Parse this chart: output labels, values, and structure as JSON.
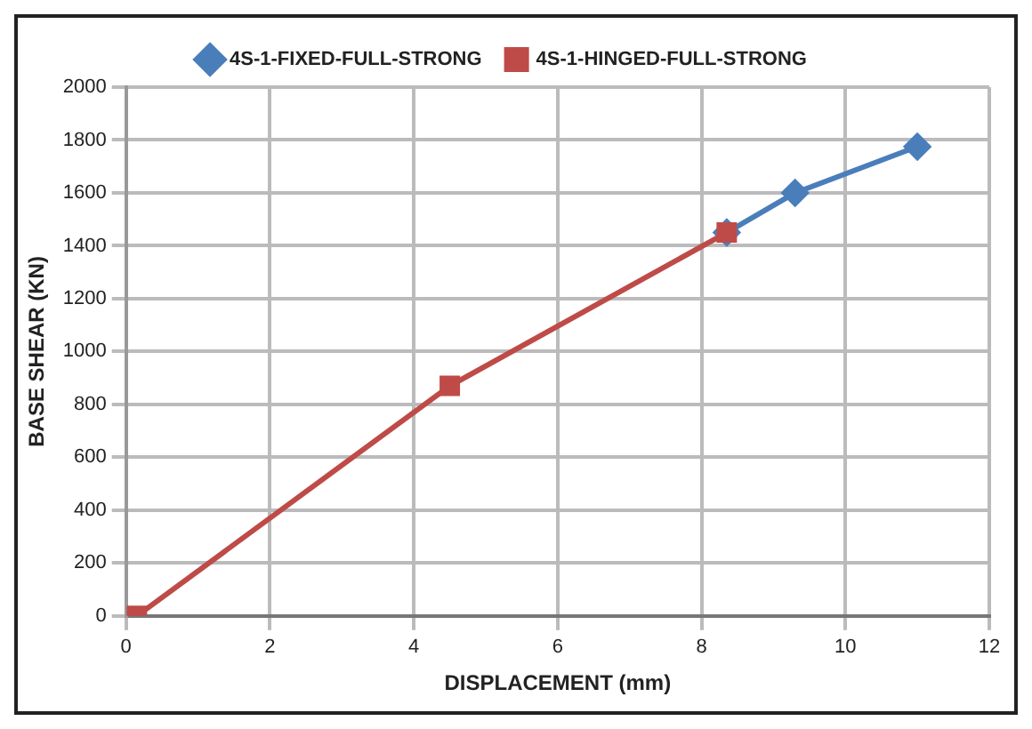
{
  "chart_data": {
    "type": "line",
    "xlabel": "DISPLACEMENT (mm)",
    "ylabel": "BASE SHEAR (KN)",
    "xlim": [
      0,
      12
    ],
    "xticks": [
      0,
      2,
      4,
      6,
      8,
      10,
      12
    ],
    "ylim": [
      0,
      2000
    ],
    "yticks": [
      0,
      200,
      400,
      600,
      800,
      1000,
      1200,
      1400,
      1600,
      1800,
      2000
    ],
    "grid": true,
    "legend": "top",
    "series": [
      {
        "name": "4S-1-FIXED-FULL-STRONG",
        "color": "#4a7ebb",
        "marker": "diamond",
        "x": [
          8.35,
          9.3,
          11
        ],
        "values": [
          1450,
          1600,
          1775
        ]
      },
      {
        "name": "4S-1-HINGED-FULL-STRONG",
        "color": "#be4b48",
        "marker": "square",
        "x": [
          0.15,
          4.5,
          8.35
        ],
        "values": [
          0,
          870,
          1450
        ]
      }
    ]
  }
}
